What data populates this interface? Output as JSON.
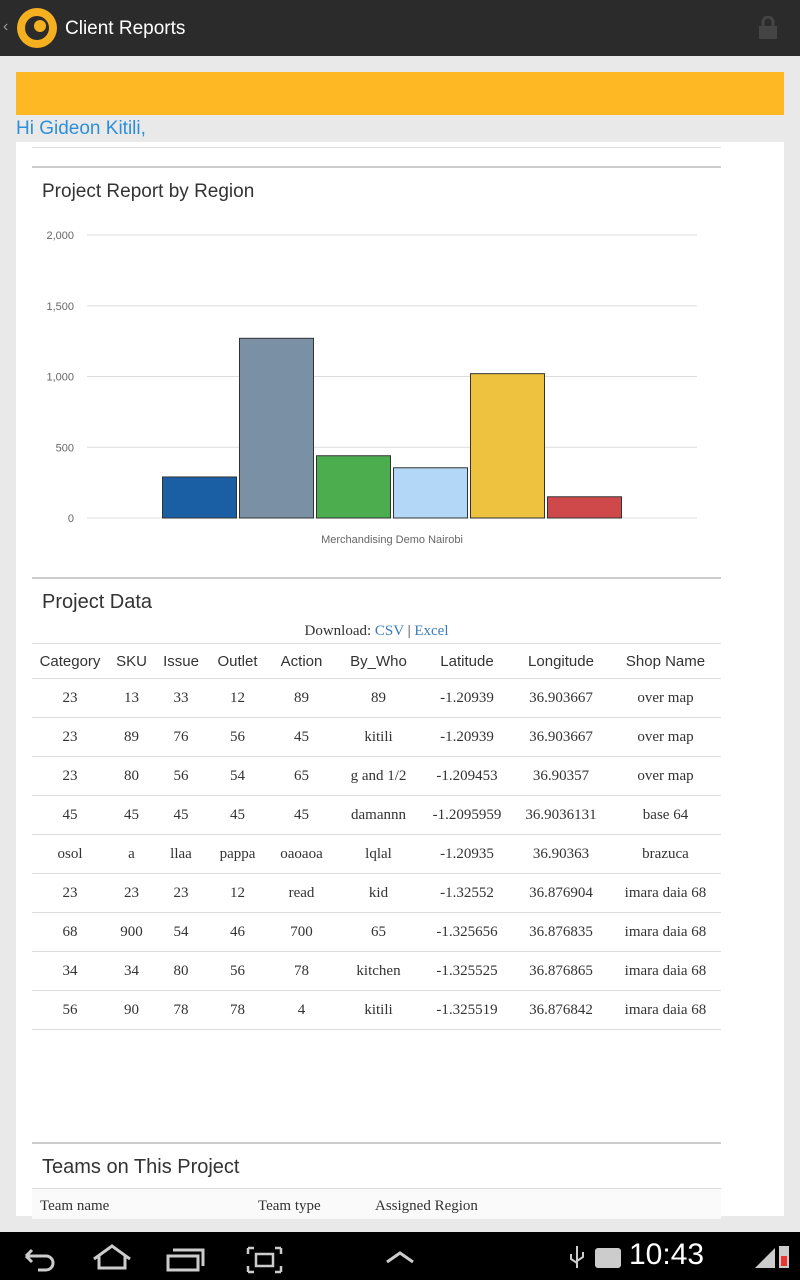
{
  "app_bar": {
    "title": "Client Reports"
  },
  "greeting": "Hi Gideon Kitili,",
  "chart_data": {
    "type": "bar",
    "title": "Project Report by Region",
    "categories": [
      "Merchandising Demo Nairobi"
    ],
    "series": [
      {
        "color": "#1a5fa3",
        "values": [
          290
        ]
      },
      {
        "color": "#7a90a5",
        "values": [
          1270
        ]
      },
      {
        "color": "#4cad4f",
        "values": [
          440
        ]
      },
      {
        "color": "#b3d7f7",
        "values": [
          355
        ]
      },
      {
        "color": "#eec13e",
        "values": [
          1020
        ]
      },
      {
        "color": "#d0494a",
        "values": [
          150
        ]
      }
    ],
    "ylim": [
      0,
      2000
    ],
    "yticks": [
      0,
      500,
      {
        "value": 1000,
        "label": "1,000"
      },
      {
        "value": 1500,
        "label": "1,500"
      },
      {
        "value": 2000,
        "label": "2,000"
      }
    ],
    "grid": true
  },
  "project_data": {
    "title": "Project Data",
    "download": {
      "label": "Download:",
      "csv": "CSV",
      "separator": "|",
      "excel": "Excel"
    },
    "table": {
      "header": [
        "Category",
        "SKU",
        "Issue",
        "Outlet",
        "Action",
        "By_Who",
        "Latitude",
        "Longitude",
        "Shop Name"
      ],
      "rows": [
        [
          "23",
          "13",
          "33",
          "12",
          "89",
          "89",
          "-1.20939",
          "36.903667",
          "over map"
        ],
        [
          "23",
          "89",
          "76",
          "56",
          "45",
          "kitili",
          "-1.20939",
          "36.903667",
          "over map"
        ],
        [
          "23",
          "80",
          "56",
          "54",
          "65",
          "g and 1/2",
          "-1.209453",
          "36.90357",
          "over map"
        ],
        [
          "45",
          "45",
          "45",
          "45",
          "45",
          "damannn",
          "-1.2095959",
          "36.9036131",
          "base 64"
        ],
        [
          "osol",
          "a",
          "llaa",
          "pappa",
          "oaoaoa",
          "lqlal",
          "-1.20935",
          "36.90363",
          "brazuca"
        ],
        [
          "23",
          "23",
          "23",
          "12",
          "read",
          "kid",
          "-1.32552",
          "36.876904",
          "imara daia 68"
        ],
        [
          "68",
          "900",
          "54",
          "46",
          "700",
          "65",
          "-1.325656",
          "36.876835",
          "imara daia 68"
        ],
        [
          "34",
          "34",
          "80",
          "56",
          "78",
          "kitchen",
          "-1.325525",
          "36.876865",
          "imara daia 68"
        ],
        [
          "56",
          "90",
          "78",
          "78",
          "4",
          "kitili",
          "-1.325519",
          "36.876842",
          "imara daia 68"
        ]
      ]
    }
  },
  "teams": {
    "title": "Teams on This Project",
    "header": [
      "Team name",
      "Team type",
      "Assigned Region"
    ]
  },
  "status_bar": {
    "time": "10:43"
  }
}
